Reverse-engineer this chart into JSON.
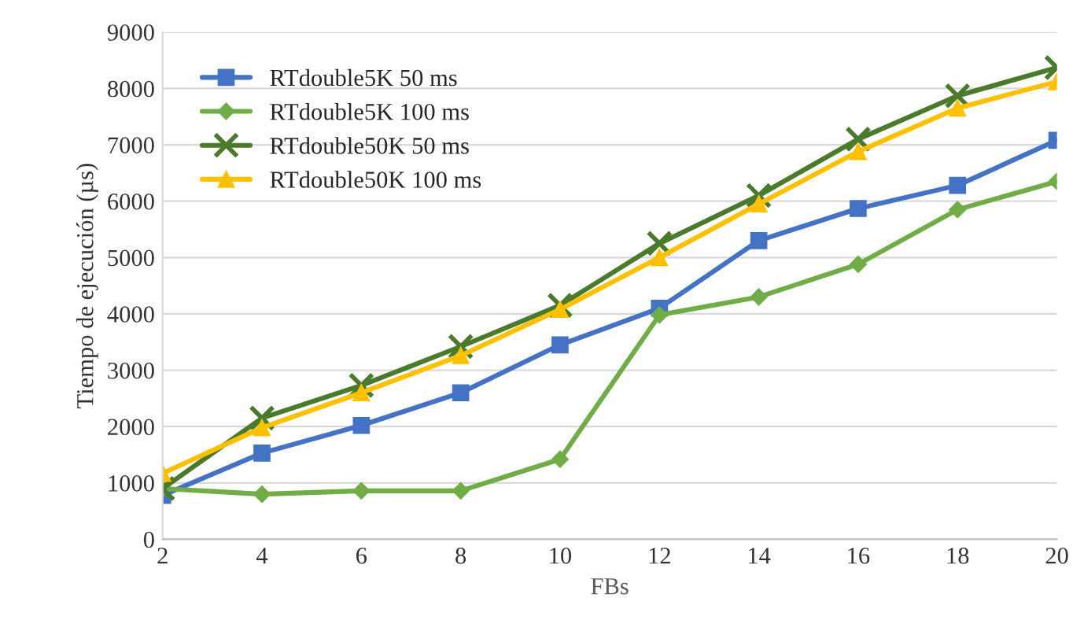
{
  "chart_data": {
    "type": "line",
    "xlabel": "FBs",
    "ylabel": "Tiempo de ejecución (µs)",
    "x": [
      2,
      4,
      6,
      8,
      10,
      12,
      14,
      16,
      18,
      20
    ],
    "xlim": [
      2,
      20
    ],
    "xticks": [
      2,
      4,
      6,
      8,
      10,
      12,
      14,
      16,
      18,
      20
    ],
    "ylim": [
      0,
      9000
    ],
    "yticks": [
      0,
      1000,
      2000,
      3000,
      4000,
      5000,
      6000,
      7000,
      8000,
      9000
    ],
    "grid": "y",
    "legend": "top left",
    "line_style": "solid",
    "series": [
      {
        "name": "RTdouble5K 50 ms",
        "color": "#4472c4",
        "marker": "square",
        "values": [
          780,
          1530,
          2020,
          2600,
          3450,
          4100,
          5300,
          5870,
          6280,
          7080
        ]
      },
      {
        "name": "RTdouble5K 100 ms",
        "color": "#70ad47",
        "marker": "diamond",
        "values": [
          900,
          800,
          860,
          860,
          1420,
          3980,
          4300,
          4880,
          5850,
          6350
        ]
      },
      {
        "name": "RTdouble50K 50 ms",
        "color": "#4a7a2c",
        "marker": "cross",
        "values": [
          900,
          2150,
          2730,
          3420,
          4150,
          5250,
          6100,
          7100,
          7870,
          8370
        ]
      },
      {
        "name": "RTdouble50K 100 ms",
        "color": "#ffc000",
        "marker": "triangle",
        "values": [
          1170,
          1980,
          2600,
          3260,
          4080,
          5000,
          5950,
          6880,
          7650,
          8120
        ]
      }
    ]
  }
}
